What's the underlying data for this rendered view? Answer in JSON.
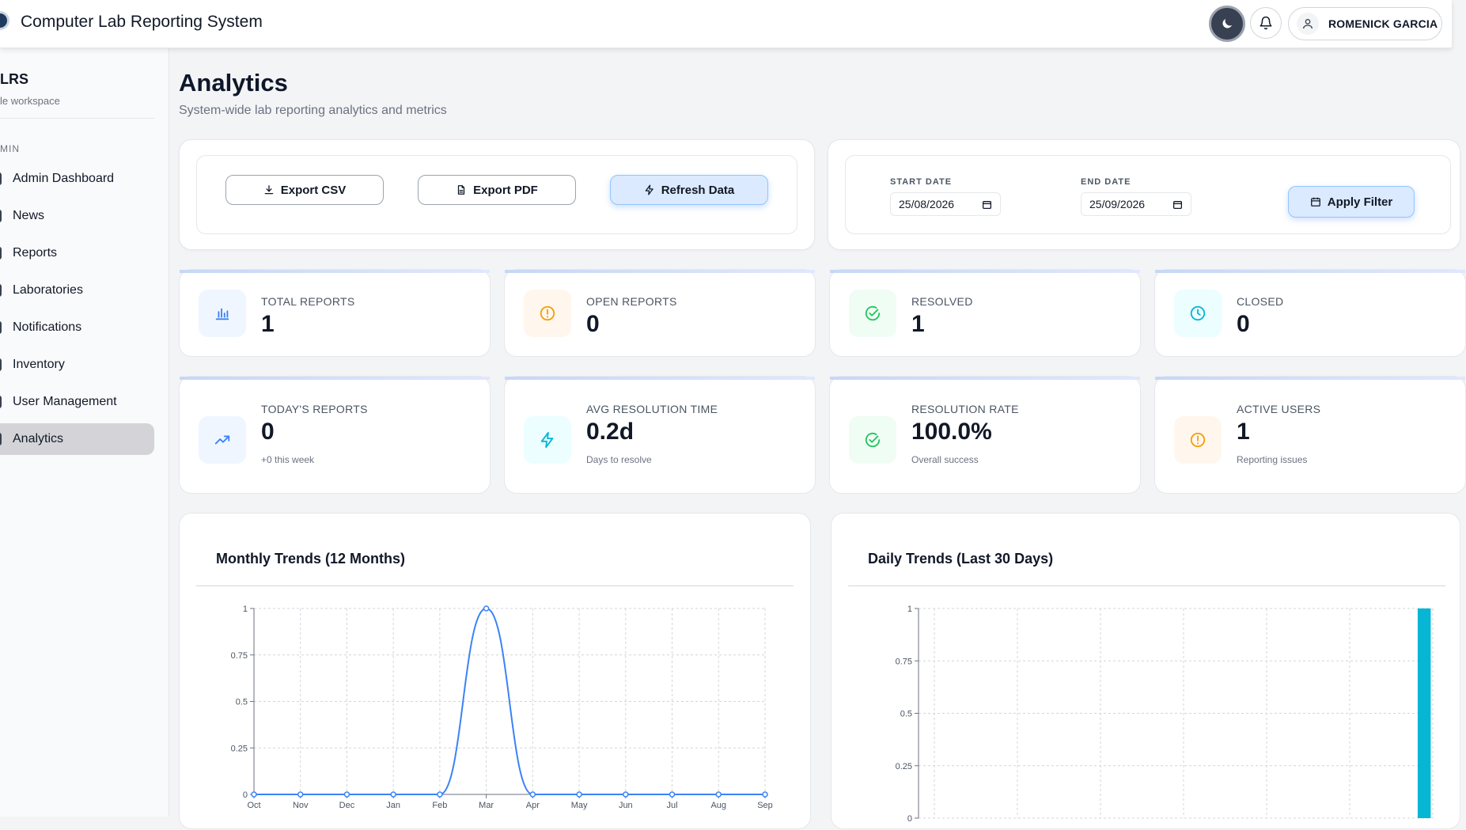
{
  "header": {
    "app_title": "Computer Lab Reporting System",
    "user_name": "ROMENICK GARCIA"
  },
  "sidebar": {
    "brand_title": "LRS",
    "brand_subtitle": "le workspace",
    "section_label": "MIN",
    "items": [
      {
        "label": "Admin Dashboard",
        "active": false
      },
      {
        "label": "News",
        "active": false
      },
      {
        "label": "Reports",
        "active": false
      },
      {
        "label": "Laboratories",
        "active": false
      },
      {
        "label": "Notifications",
        "active": false
      },
      {
        "label": "Inventory",
        "active": false
      },
      {
        "label": "User Management",
        "active": false
      },
      {
        "label": "Analytics",
        "active": true
      }
    ]
  },
  "page": {
    "title": "Analytics",
    "subtitle": "System-wide lab reporting analytics and metrics"
  },
  "toolbar": {
    "export_csv_label": "Export CSV",
    "export_pdf_label": "Export PDF",
    "refresh_label": "Refresh Data"
  },
  "filter": {
    "start_label": "START DATE",
    "start_value": "25/08/2026",
    "end_label": "END DATE",
    "end_value": "25/09/2026",
    "apply_label": "Apply Filter"
  },
  "stats": {
    "total_reports": {
      "label": "TOTAL REPORTS",
      "value": "1"
    },
    "open_reports": {
      "label": "OPEN REPORTS",
      "value": "0"
    },
    "resolved": {
      "label": "RESOLVED",
      "value": "1"
    },
    "closed": {
      "label": "CLOSED",
      "value": "0"
    },
    "todays_reports": {
      "label": "TODAY'S REPORTS",
      "value": "0",
      "note": "+0 this week"
    },
    "avg_resolution": {
      "label": "AVG RESOLUTION TIME",
      "value": "0.2d",
      "note": "Days to resolve"
    },
    "resolution_rate": {
      "label": "RESOLUTION RATE",
      "value": "100.0%",
      "note": "Overall success"
    },
    "active_users": {
      "label": "ACTIVE USERS",
      "value": "1",
      "note": "Reporting issues"
    }
  },
  "colors": {
    "blue_icon": "#3b82f6",
    "amber_icon": "#f59e0b",
    "green_icon": "#22c55e",
    "cyan_icon": "#06b6d4",
    "line_series": "#3b82f6",
    "bar_series": "#06b6d4"
  },
  "chart_data": [
    {
      "type": "line",
      "title": "Monthly Trends (12 Months)",
      "categories": [
        "Oct",
        "Nov",
        "Dec",
        "Jan",
        "Feb",
        "Mar",
        "Apr",
        "May",
        "Jun",
        "Jul",
        "Aug",
        "Sep"
      ],
      "series": [
        {
          "values": [
            0,
            0,
            0,
            0,
            0,
            1,
            0,
            0,
            0,
            0,
            0,
            0
          ]
        }
      ],
      "yticks": [
        "0",
        "0.25",
        "0.5",
        "0.75",
        "1"
      ],
      "ylim": [
        0,
        1
      ],
      "grid": true,
      "smooth": true
    },
    {
      "type": "bar",
      "title": "Daily Trends (Last 30 Days)",
      "series": [
        {
          "values": [
            0,
            0,
            0,
            0,
            0,
            0,
            0,
            0,
            0,
            0,
            0,
            0,
            0,
            0,
            0,
            0,
            0,
            0,
            0,
            0,
            0,
            0,
            0,
            0,
            0,
            0,
            0,
            0,
            0,
            1
          ]
        }
      ],
      "yticks": [
        "0",
        "0.25",
        "0.5",
        "0.75",
        "1"
      ],
      "ylim": [
        0,
        1
      ],
      "grid": true
    }
  ]
}
